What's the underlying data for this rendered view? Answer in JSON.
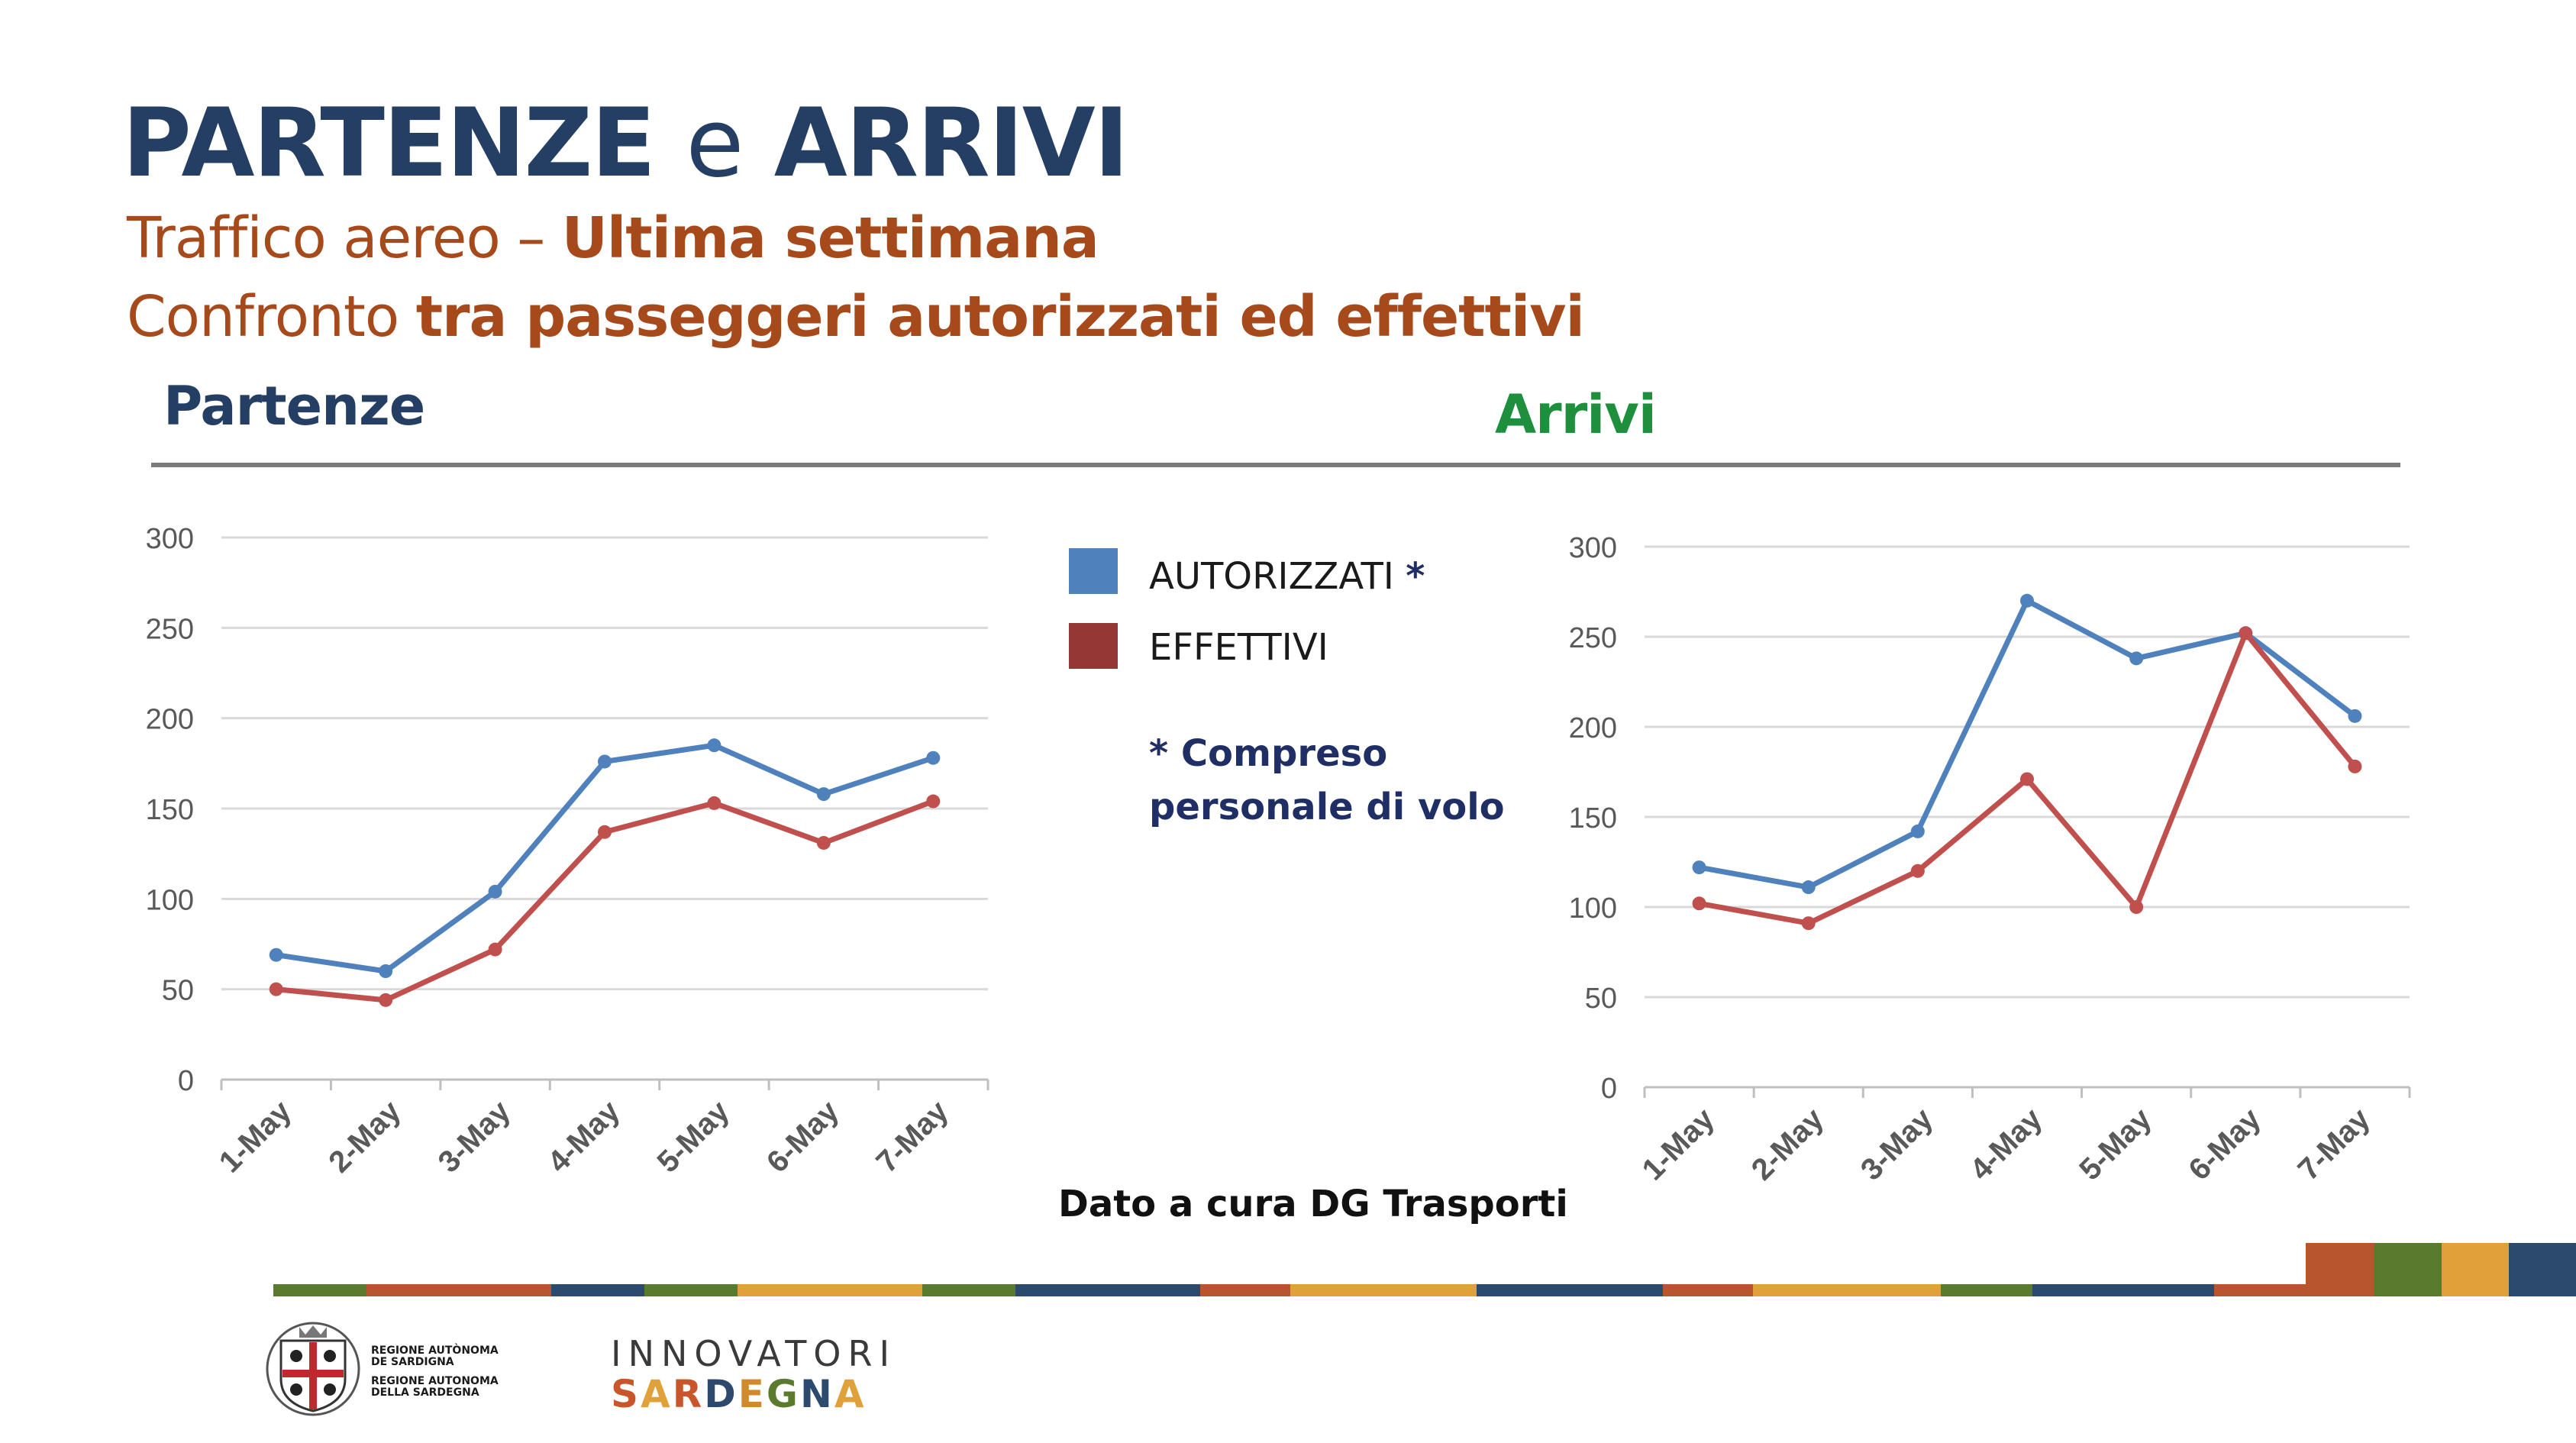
{
  "header": {
    "title_part1": "PARTENZE",
    "title_connector": "e",
    "title_part2": "ARRIVI",
    "subtitle1_normal": "Traffico aereo – ",
    "subtitle1_bold": "Ultima settimana",
    "subtitle2_normal": "Confronto ",
    "subtitle2_bold": "tra passeggeri autorizzati ed effettivi"
  },
  "legend": {
    "autorizzati": "AUTORIZZATI",
    "asterisk": "*",
    "effettivi": "EFFETTIVI",
    "note": "* Compreso personale di volo"
  },
  "source": "Dato a cura DG Trasporti",
  "footer": {
    "region_line1": "REGIONE AUTÒNOMA",
    "region_line2": "DE SARDIGNA",
    "region_line3": "REGIONE AUTONOMA",
    "region_line4": "DELLA SARDEGNA",
    "innovatori": "INNOVATORI",
    "sardegna_letters": [
      "S",
      "A",
      "R",
      "D",
      "E",
      "G",
      "N",
      "A"
    ],
    "sardegna_colors": [
      "#c9552a",
      "#e0a13a",
      "#c9552a",
      "#2c4a6e",
      "#d08a2c",
      "#5a7a2e",
      "#2c4a6e",
      "#e0a13a"
    ],
    "logo_icon": "regional-coat-of-arms-icon"
  },
  "colors": {
    "autorizzati": "#4f81bd",
    "effettivi": "#c0504d",
    "strip": [
      "#5a7a2e",
      "#b9552e",
      "#2c4a6e",
      "#e0a13a"
    ]
  },
  "chart_data": [
    {
      "type": "line",
      "title": "Partenze",
      "categories": [
        "1-May",
        "2-May",
        "3-May",
        "4-May",
        "5-May",
        "6-May",
        "7-May"
      ],
      "series": [
        {
          "name": "AUTORIZZATI *",
          "values": [
            69,
            60,
            104,
            176,
            185,
            158,
            178
          ]
        },
        {
          "name": "EFFETTIVI",
          "values": [
            50,
            44,
            72,
            137,
            153,
            131,
            154
          ]
        }
      ],
      "ylim": [
        0,
        300
      ],
      "yticks": [
        0,
        50,
        100,
        150,
        200,
        250,
        300
      ],
      "grid": true
    },
    {
      "type": "line",
      "title": "Arrivi",
      "categories": [
        "1-May",
        "2-May",
        "3-May",
        "4-May",
        "5-May",
        "6-May",
        "7-May"
      ],
      "series": [
        {
          "name": "AUTORIZZATI *",
          "values": [
            122,
            111,
            142,
            270,
            238,
            252,
            206
          ]
        },
        {
          "name": "EFFETTIVI",
          "values": [
            102,
            91,
            120,
            171,
            100,
            252,
            178
          ]
        }
      ],
      "ylim": [
        0,
        300
      ],
      "yticks": [
        0,
        50,
        100,
        150,
        200,
        250,
        300
      ],
      "grid": true
    }
  ]
}
